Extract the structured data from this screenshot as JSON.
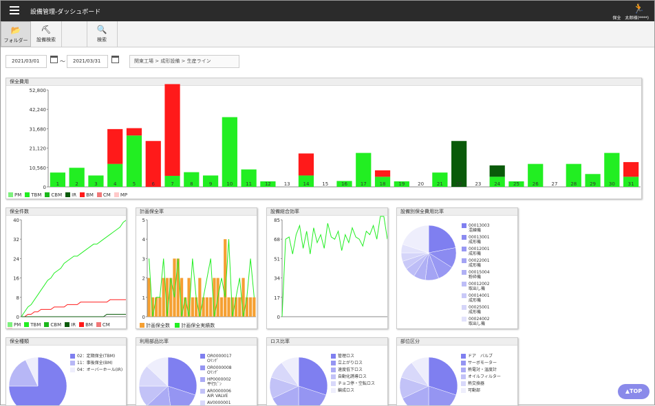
{
  "app": {
    "title": "設備管理-ダッシュボード",
    "user": "保全　太郎様(****)",
    "user_icon": "person-running-icon"
  },
  "toolbar": [
    {
      "label": "フォルダー",
      "icon": "folder-icon"
    },
    {
      "label": "設備検索",
      "icon": "machine-icon"
    },
    {
      "label": "検索",
      "icon": "search-icon"
    }
  ],
  "filter": {
    "date_from": "2021/03/01",
    "date_sep": "～",
    "date_to": "2021/03/31",
    "breadcrumb": "関東工場 > 成形設備 > 生産ライン"
  },
  "colors": {
    "PM": "#7df07d",
    "TBM": "#22ee22",
    "CBM": "#1bb81b",
    "IR": "#0a5a0a",
    "BM": "#ff1a1a",
    "CM": "#f07878",
    "MP": "#ffc8c8",
    "plan": "#f5a033",
    "pie": "#7f7ff0"
  },
  "legend": [
    "PM",
    "TBM",
    "CBM",
    "IR",
    "BM",
    "CM",
    "MP"
  ],
  "panels": {
    "cost": "保全費用",
    "count": "保全件数",
    "plan_rate": "計画保全率",
    "efficiency": "設備総合効率",
    "cost_ratio": "設備別保全費用比率",
    "types": "保全種類",
    "parts": "利用部品比率",
    "loss": "ロス比率",
    "area": "部位区分"
  },
  "plan_legend": [
    "計画保全数",
    "計画保全実績数"
  ],
  "top_button": "▲TOP",
  "chart_data": [
    {
      "type": "bar",
      "title": "保全費用",
      "categories": [
        "1",
        "2",
        "3",
        "4",
        "5",
        "6",
        "7",
        "8",
        "9",
        "10",
        "11",
        "12",
        "13",
        "14",
        "15",
        "16",
        "17",
        "18",
        "19",
        "20",
        "21",
        "22",
        "23",
        "24",
        "25",
        "26",
        "27",
        "28",
        "29",
        "30",
        "31"
      ],
      "yticks": [
        0,
        10560,
        21120,
        31680,
        42240,
        52800
      ],
      "ylim": [
        0,
        52800
      ],
      "series": [
        {
          "name": "TBM",
          "values": [
            7800,
            10400,
            6200,
            12500,
            28000,
            0,
            6000,
            8000,
            6200,
            38000,
            9500,
            3000,
            0,
            6200,
            0,
            3200,
            18500,
            5500,
            3000,
            0,
            7800,
            0,
            0,
            5500,
            3000,
            12500,
            0,
            12500,
            7000,
            18500,
            5500
          ]
        },
        {
          "name": "IR",
          "values": [
            0,
            0,
            0,
            0,
            0,
            0,
            0,
            0,
            0,
            0,
            0,
            0,
            0,
            0,
            0,
            0,
            0,
            0,
            0,
            0,
            0,
            25000,
            0,
            6200,
            0,
            0,
            0,
            0,
            0,
            0,
            0
          ]
        },
        {
          "name": "BM",
          "values": [
            0,
            0,
            0,
            19000,
            4000,
            25000,
            50000,
            0,
            0,
            0,
            0,
            0,
            0,
            12000,
            0,
            0,
            0,
            3500,
            0,
            0,
            0,
            0,
            0,
            0,
            0,
            0,
            0,
            0,
            0,
            0,
            8000
          ]
        }
      ]
    },
    {
      "type": "line",
      "title": "保全件数",
      "yticks": [
        0,
        8,
        16,
        24,
        32,
        40
      ],
      "ylim": [
        0,
        40
      ],
      "series": [
        {
          "name": "TBM",
          "values": [
            0,
            2,
            4,
            5,
            7,
            9,
            11,
            13,
            15,
            16,
            18,
            19,
            20,
            22,
            23,
            24,
            25,
            25,
            26,
            27,
            28,
            29,
            30,
            30,
            31,
            32,
            33,
            34,
            35,
            36,
            37,
            39,
            40
          ]
        },
        {
          "name": "BM",
          "values": [
            0,
            0,
            1,
            1,
            2,
            2,
            3,
            3,
            3,
            3,
            4,
            4,
            4,
            4,
            5,
            5,
            5,
            5,
            6,
            6,
            6,
            6,
            6,
            6,
            6,
            6,
            6,
            7,
            7,
            7,
            7,
            7,
            7
          ]
        },
        {
          "name": "IR",
          "values": [
            0,
            0,
            0,
            0,
            0,
            0,
            0,
            0,
            0,
            0,
            0,
            0,
            0,
            0,
            0,
            0,
            0,
            0,
            0,
            0,
            0,
            0,
            0,
            0,
            0,
            0,
            1,
            1,
            1,
            1,
            1,
            1,
            1
          ]
        }
      ]
    },
    {
      "type": "bar",
      "title": "計画保全率",
      "yticks": [
        0,
        1,
        2,
        3,
        4,
        5
      ],
      "ylim": [
        0,
        5
      ],
      "series": [
        {
          "name": "計画保全数",
          "values": [
            2,
            1,
            1,
            1,
            2,
            2,
            2,
            3,
            3,
            2,
            1,
            2,
            1,
            1,
            2,
            1,
            1,
            1,
            2,
            2,
            1,
            4,
            1,
            1,
            1,
            1,
            2,
            1,
            1,
            1
          ]
        },
        {
          "name": "計画保全実績数",
          "values": [
            3,
            0,
            1,
            1,
            3,
            0,
            2,
            1,
            3,
            0,
            1,
            0,
            3,
            1,
            0,
            1,
            2,
            3,
            0,
            1,
            2,
            1,
            4,
            0,
            1,
            2,
            0,
            1,
            3,
            1
          ]
        }
      ]
    },
    {
      "type": "line",
      "title": "設備総合効率",
      "yticks": [
        0,
        17,
        34,
        51,
        68,
        85
      ],
      "ylim": [
        0,
        85
      ],
      "series": [
        {
          "name": "設備総合効率",
          "values": [
            0,
            68,
            70,
            55,
            72,
            80,
            60,
            75,
            55,
            78,
            65,
            72,
            60,
            82,
            70,
            68,
            75,
            58,
            72,
            65,
            78,
            70,
            68,
            62,
            75,
            72,
            80,
            68,
            88,
            88,
            68
          ]
        }
      ]
    },
    {
      "type": "pie",
      "title": "設備別保全費用比率",
      "labels": [
        "00013003\n混練機",
        "00013001\n成形機",
        "00012001\n成形機",
        "00022001\n成形機",
        "00015004\n粉砕機",
        "00012002\n取出し機",
        "00014001\n成形機",
        "00025001\n成形機",
        "00024002\n取出し機",
        "その他"
      ],
      "values": [
        22,
        12,
        10,
        8,
        7,
        6,
        5,
        5,
        5,
        20
      ]
    },
    {
      "type": "pie",
      "title": "保全種類",
      "labels": [
        "02：定期保全(TBM)",
        "11：事後保全(BM)",
        "04：オーバーホール(IR)"
      ],
      "values": [
        75,
        18,
        7
      ]
    },
    {
      "type": "pie",
      "title": "利用部品比率",
      "labels": [
        "OR0000017\nOﾘﾝｸﾞ",
        "OR0000008\nOﾘﾝｸﾞ",
        "HP0000002\n平行ﾋﾟﾝ",
        "AR0000006\nAIR VALVE",
        "AV0000001\nｴｱﾊﾞﾙﾌﾞ",
        "OR0000009\nOﾘﾝｸﾞ"
      ],
      "values": [
        30,
        18,
        15,
        12,
        12,
        13
      ]
    },
    {
      "type": "pie",
      "title": "ロス比率",
      "labels": [
        "管理ロス",
        "立上がりロス",
        "速度低下ロス",
        "自動化誘導ロス",
        "チョコ停・空転ロス",
        "編成ロス"
      ],
      "values": [
        30,
        20,
        18,
        12,
        10,
        10
      ]
    },
    {
      "type": "pie",
      "title": "部位区分",
      "labels": [
        "ドア　バルブ",
        "サーボモーター",
        "熱電対・温度計",
        "オイルフィルター",
        "熱交換器",
        "可動部"
      ],
      "values": [
        30,
        20,
        18,
        12,
        10,
        10
      ]
    }
  ]
}
